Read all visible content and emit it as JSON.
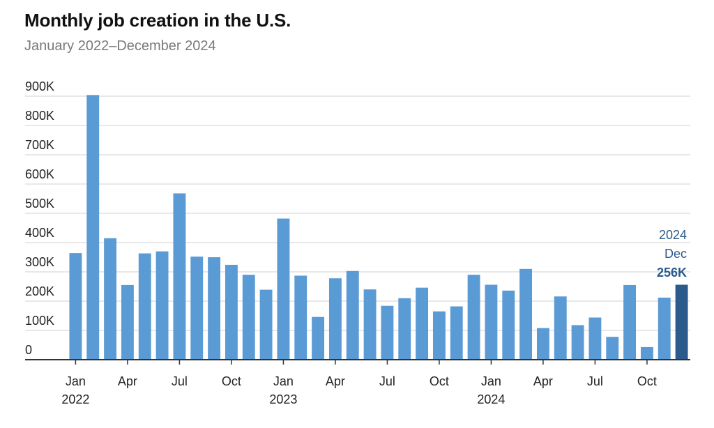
{
  "chart_data": {
    "type": "bar",
    "title": "Monthly job creation in the U.S.",
    "subtitle": "January 2022–December 2024",
    "xlabel": "",
    "ylabel": "",
    "ylim": [
      0,
      900
    ],
    "yticks": [
      0,
      100,
      200,
      300,
      400,
      500,
      600,
      700,
      800,
      900
    ],
    "ytick_labels": [
      "0",
      "100K",
      "200K",
      "300K",
      "400K",
      "500K",
      "600K",
      "700K",
      "800K",
      "900K"
    ],
    "grid": true,
    "categories": [
      "2022-01",
      "2022-02",
      "2022-03",
      "2022-04",
      "2022-05",
      "2022-06",
      "2022-07",
      "2022-08",
      "2022-09",
      "2022-10",
      "2022-11",
      "2022-12",
      "2023-01",
      "2023-02",
      "2023-03",
      "2023-04",
      "2023-05",
      "2023-06",
      "2023-07",
      "2023-08",
      "2023-09",
      "2023-10",
      "2023-11",
      "2023-12",
      "2024-01",
      "2024-02",
      "2024-03",
      "2024-04",
      "2024-05",
      "2024-06",
      "2024-07",
      "2024-08",
      "2024-09",
      "2024-10",
      "2024-11",
      "2024-12"
    ],
    "values": [
      364,
      904,
      415,
      255,
      363,
      370,
      568,
      352,
      350,
      324,
      290,
      239,
      482,
      287,
      146,
      278,
      303,
      240,
      184,
      210,
      246,
      165,
      182,
      290,
      256,
      236,
      310,
      108,
      216,
      118,
      144,
      78,
      255,
      43,
      212,
      256
    ],
    "x_tick_labels": [
      {
        "index": 0,
        "month": "Jan",
        "year": "2022"
      },
      {
        "index": 3,
        "month": "Apr",
        "year": ""
      },
      {
        "index": 6,
        "month": "Jul",
        "year": ""
      },
      {
        "index": 9,
        "month": "Oct",
        "year": ""
      },
      {
        "index": 12,
        "month": "Jan",
        "year": "2023"
      },
      {
        "index": 15,
        "month": "Apr",
        "year": ""
      },
      {
        "index": 18,
        "month": "Jul",
        "year": ""
      },
      {
        "index": 21,
        "month": "Oct",
        "year": ""
      },
      {
        "index": 24,
        "month": "Jan",
        "year": "2024"
      },
      {
        "index": 27,
        "month": "Apr",
        "year": ""
      },
      {
        "index": 30,
        "month": "Jul",
        "year": ""
      },
      {
        "index": 33,
        "month": "Oct",
        "year": ""
      }
    ],
    "highlight_index": 35,
    "annotation": {
      "year": "2024",
      "month": "Dec",
      "value_label": "256K"
    },
    "colors": {
      "bar": "#5b9bd5",
      "highlight": "#2b5a8c",
      "grid": "#d0d0d0",
      "axis": "#333333",
      "annotation": "#2b5a8c"
    }
  }
}
